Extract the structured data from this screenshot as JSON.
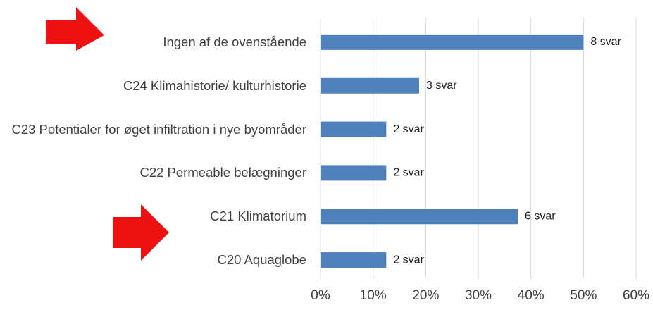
{
  "chart_data": {
    "type": "bar",
    "orientation": "horizontal",
    "categories": [
      "Ingen af de ovenstående",
      "C24 Klimahistorie/ kulturhistorie",
      "C23 Potentialer for øget infiltration i nye byområder",
      "C22 Permeable belægninger",
      "C21 Klimatorium",
      "C20 Aquaglobe"
    ],
    "values": [
      50,
      18.75,
      12.5,
      12.5,
      37.5,
      12.5
    ],
    "value_labels": [
      "8 svar",
      "3 svar",
      "2 svar",
      "2 svar",
      "6 svar",
      "2 svar"
    ],
    "color": "#4f81bd",
    "xlim": [
      0,
      60
    ],
    "xticks": [
      {
        "value": 0,
        "label": "0%"
      },
      {
        "value": 10,
        "label": "10%"
      },
      {
        "value": 20,
        "label": "20%"
      },
      {
        "value": 30,
        "label": "30%"
      },
      {
        "value": 40,
        "label": "40%"
      },
      {
        "value": 50,
        "label": "50%"
      },
      {
        "value": 60,
        "label": "60%"
      }
    ],
    "grid": true
  }
}
